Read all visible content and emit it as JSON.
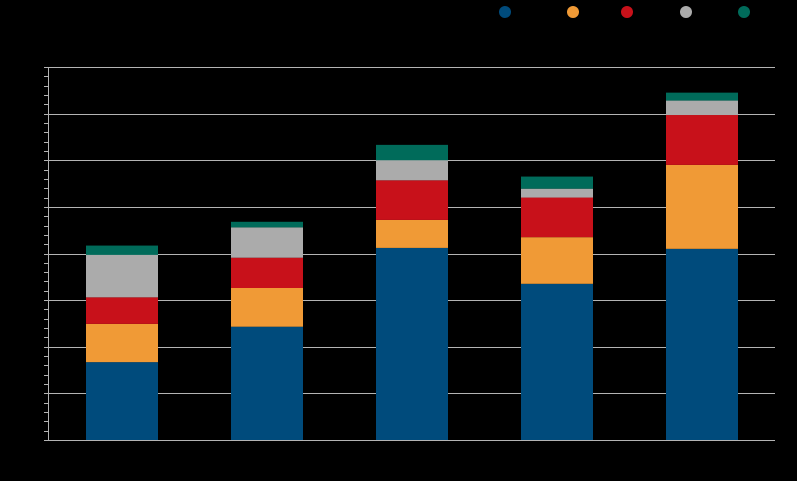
{
  "chart_data": {
    "type": "bar",
    "stacked": true,
    "categories": [
      "",
      "",
      "",
      "",
      ""
    ],
    "ylim": [
      0,
      8
    ],
    "grid": true,
    "legend": "top-right",
    "title": "",
    "xlabel": "",
    "ylabel": "",
    "series": [
      {
        "color": "#004b7c",
        "values": [
          1.67,
          2.43,
          4.12,
          3.35,
          4.1
        ]
      },
      {
        "color": "#f09a36",
        "values": [
          0.82,
          0.83,
          0.6,
          1.0,
          1.8
        ]
      },
      {
        "color": "#c8111a",
        "values": [
          0.57,
          0.65,
          0.85,
          0.85,
          1.07
        ]
      },
      {
        "color": "#ababab",
        "values": [
          0.91,
          0.65,
          0.43,
          0.19,
          0.31
        ]
      },
      {
        "color": "#006b5a",
        "values": [
          0.2,
          0.12,
          0.33,
          0.26,
          0.17
        ]
      }
    ]
  }
}
